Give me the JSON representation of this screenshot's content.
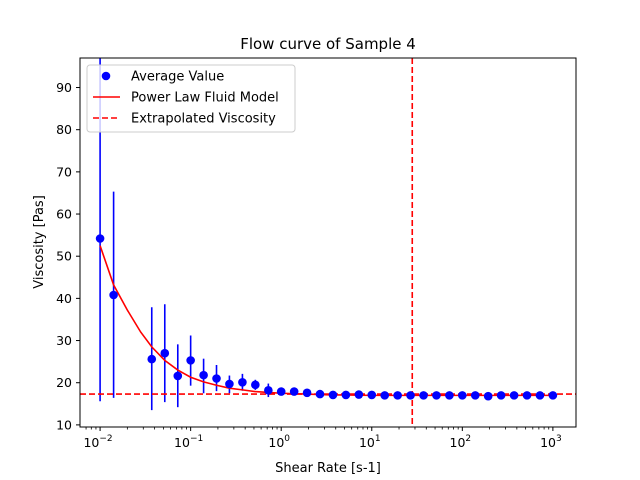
{
  "chart_data": {
    "type": "scatter",
    "title": "Flow curve of Sample 4",
    "xlabel": "Shear Rate [s-1]",
    "ylabel": "Viscosity [Pas]",
    "xscale": "log",
    "xlim": [
      0.006,
      1800
    ],
    "ylim": [
      9.5,
      97
    ],
    "x_ticks": [
      {
        "value": 0.01,
        "base": "10",
        "exp": "−2"
      },
      {
        "value": 0.1,
        "base": "10",
        "exp": "−1"
      },
      {
        "value": 1,
        "base": "10",
        "exp": "0"
      },
      {
        "value": 10,
        "base": "10",
        "exp": "1"
      },
      {
        "value": 100,
        "base": "10",
        "exp": "2"
      },
      {
        "value": 1000,
        "base": "10",
        "exp": "3"
      }
    ],
    "y_ticks": [
      10,
      20,
      30,
      40,
      50,
      60,
      70,
      80,
      90
    ],
    "grid": false,
    "legend_position": "top-left",
    "series": [
      {
        "name": "Average Value",
        "style": "markers-with-errorbars",
        "color": "#0000ff",
        "x": [
          0.01,
          0.0141,
          0.0372,
          0.0518,
          0.0721,
          0.1,
          0.139,
          0.193,
          0.268,
          0.373,
          0.518,
          0.721,
          1.0,
          1.39,
          1.93,
          2.68,
          3.73,
          5.18,
          7.2,
          10.0,
          13.9,
          19.3,
          26.8,
          37.3,
          51.8,
          72.0,
          100,
          139,
          193,
          268,
          373,
          518,
          720,
          1000
        ],
        "y": [
          54.2,
          40.8,
          25.6,
          27.0,
          21.6,
          25.3,
          21.8,
          21.0,
          19.7,
          20.1,
          19.5,
          18.2,
          17.9,
          17.9,
          17.6,
          17.3,
          17.1,
          17.1,
          17.2,
          17.1,
          17.0,
          17.0,
          17.0,
          17.0,
          17.0,
          17.0,
          17.0,
          17.0,
          16.8,
          17.0,
          17.0,
          17.0,
          17.0,
          17.0
        ],
        "yerr_low": [
          15.6,
          16.4,
          13.5,
          15.4,
          14.2,
          19.3,
          17.5,
          18.0,
          17.5,
          18.1,
          18.3,
          16.6,
          17.0,
          17.0,
          16.8,
          16.8,
          16.6,
          16.6,
          16.6,
          16.6,
          16.6,
          16.6,
          16.6,
          16.6,
          16.6,
          16.6,
          16.6,
          16.6,
          16.4,
          16.6,
          16.6,
          16.6,
          16.6,
          16.6
        ],
        "yerr_high": [
          97,
          65.3,
          37.9,
          38.6,
          29.1,
          31.2,
          25.7,
          24.2,
          21.7,
          22.1,
          20.7,
          19.8,
          18.8,
          18.8,
          18.4,
          17.8,
          17.6,
          17.6,
          17.8,
          17.6,
          17.4,
          17.4,
          17.4,
          17.4,
          17.4,
          17.4,
          17.4,
          17.4,
          17.2,
          17.4,
          17.4,
          17.4,
          17.4,
          17.4
        ]
      },
      {
        "name": "Power Law Fluid Model",
        "style": "line",
        "color": "#ff0000",
        "x": [
          0.01,
          0.0141,
          0.0199,
          0.0281,
          0.0372,
          0.0518,
          0.0721,
          0.1,
          0.139,
          0.193,
          0.268,
          0.373,
          0.518,
          0.721,
          1.0,
          1.39,
          1.93,
          2.68,
          3.73,
          5.18,
          7.2,
          10,
          100,
          1000
        ],
        "y": [
          52.5,
          43.2,
          37.3,
          32.0,
          28.5,
          25.3,
          23.0,
          21.3,
          20.2,
          19.4,
          18.7,
          18.3,
          17.9,
          17.7,
          17.5,
          17.4,
          17.3,
          17.2,
          17.1,
          17.1,
          17.05,
          17.0,
          17.0,
          17.0
        ]
      },
      {
        "name": "Extrapolated Viscosity",
        "style": "dashed-line",
        "color": "#ff0000",
        "hline_y": 17.3,
        "vline_x": 28
      }
    ]
  }
}
